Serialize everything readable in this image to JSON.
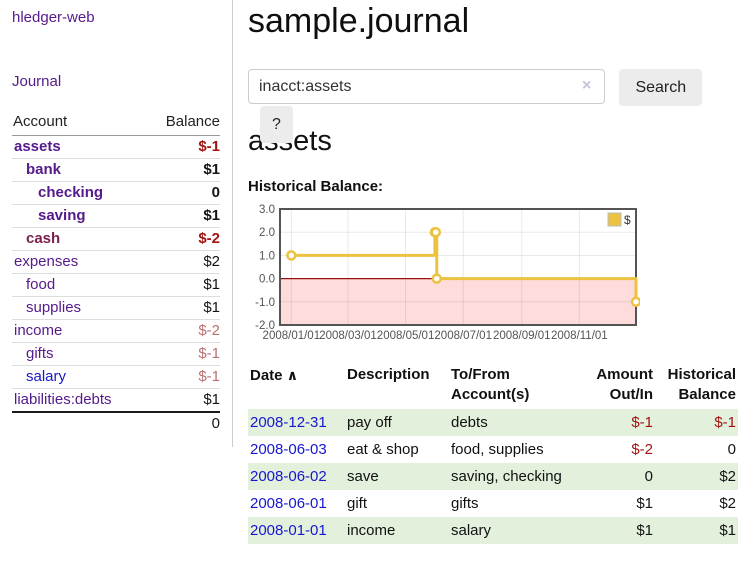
{
  "app": {
    "title": "hledger-web",
    "nav_journal": "Journal"
  },
  "colors": {
    "link_purple": "#551A8B",
    "link_blue": "#1717CF",
    "account_maroon": "#7A1E4E",
    "negative_red": "#A31212",
    "muted_rose": "#B97070",
    "positive_black": "#141414",
    "row_green": "#E3F0DC",
    "chart_gold": "#EDC240",
    "chart_negative_fill": "#FFDCDC",
    "chart_zero_line": "#941111",
    "button_bg": "#ECECEC",
    "clear_icon": "#C8C0DC"
  },
  "sidebar": {
    "header": {
      "account": "Account",
      "balance": "Balance"
    },
    "accounts": [
      {
        "label": "assets",
        "depth": 1,
        "bold": true,
        "color": "purple",
        "balance": "$-1",
        "balance_style": "neg",
        "balance_bold": true
      },
      {
        "label": "bank",
        "depth": 2,
        "bold": true,
        "color": "purple",
        "balance": "$1",
        "balance_style": "pos",
        "balance_bold": true
      },
      {
        "label": "checking",
        "depth": 3,
        "bold": true,
        "color": "purple",
        "balance": "0",
        "balance_style": "pos",
        "balance_bold": true
      },
      {
        "label": "saving",
        "depth": 3,
        "bold": true,
        "color": "purple",
        "balance": "$1",
        "balance_style": "pos",
        "balance_bold": true
      },
      {
        "label": "cash",
        "depth": 2,
        "bold": true,
        "color": "maroon",
        "balance": "$-2",
        "balance_style": "neg",
        "balance_bold": true
      },
      {
        "label": "expenses",
        "depth": 1,
        "bold": false,
        "color": "purple",
        "balance": "$2",
        "balance_style": "pos",
        "balance_bold": false
      },
      {
        "label": "food",
        "depth": 2,
        "bold": false,
        "color": "purple",
        "balance": "$1",
        "balance_style": "pos",
        "balance_bold": false
      },
      {
        "label": "supplies",
        "depth": 2,
        "bold": false,
        "color": "purple",
        "balance": "$1",
        "balance_style": "pos",
        "balance_bold": false
      },
      {
        "label": "income",
        "depth": 1,
        "bold": false,
        "color": "purple",
        "balance": "$-2",
        "balance_style": "rose",
        "balance_bold": false
      },
      {
        "label": "gifts",
        "depth": 2,
        "bold": false,
        "color": "purple",
        "balance": "$-1",
        "balance_style": "rose",
        "balance_bold": false
      },
      {
        "label": "salary",
        "depth": 2,
        "bold": false,
        "color": "blue",
        "balance": "$-1",
        "balance_style": "rose",
        "balance_bold": false
      },
      {
        "label": "liabilities:debts",
        "depth": 1,
        "bold": false,
        "color": "purple",
        "balance": "$1",
        "balance_style": "pos",
        "balance_bold": false
      }
    ],
    "total": "0"
  },
  "main": {
    "title": "sample.journal",
    "search": {
      "value": "inacct:assets",
      "clear_icon": "×",
      "button_label": "Search",
      "help_label": "?"
    },
    "account_heading": "assets",
    "chart_label": "Historical Balance:"
  },
  "chart_data": {
    "type": "line",
    "title": "Historical Balance",
    "step": true,
    "series": [
      {
        "name": "$",
        "color": "#EDC240",
        "points": [
          [
            "2008-01-01",
            1
          ],
          [
            "2008-06-01",
            2
          ],
          [
            "2008-06-02",
            2
          ],
          [
            "2008-06-03",
            0
          ],
          [
            "2008-12-31",
            -1
          ]
        ]
      }
    ],
    "ylim": [
      -2,
      3
    ],
    "yticks": [
      3.0,
      2.0,
      1.0,
      0.0,
      -1.0,
      -2.0
    ],
    "xticks": [
      "2008/01/01",
      "2008/03/01",
      "2008/05/01",
      "2008/07/01",
      "2008/09/01",
      "2008/11/01"
    ],
    "grid": true,
    "legend_position": "top-right",
    "negative_region": {
      "from": 0,
      "to": -2,
      "fill": "#FFDCDC",
      "zero_line": "#941111"
    }
  },
  "register": {
    "columns": {
      "date": "Date",
      "description": "Description",
      "accounts": "To/From Account(s)",
      "amount": "Amount Out/In",
      "balance": "Historical Balance"
    },
    "sort_icon": "∧",
    "rows": [
      {
        "date": "2008-12-31",
        "description": "pay off",
        "accounts": "debts",
        "amount": "$-1",
        "amount_style": "neg",
        "balance": "$-1",
        "balance_style": "neg",
        "green": true
      },
      {
        "date": "2008-06-03",
        "description": "eat & shop",
        "accounts": "food, supplies",
        "amount": "$-2",
        "amount_style": "neg",
        "balance": "0",
        "balance_style": "pos",
        "green": false
      },
      {
        "date": "2008-06-02",
        "description": "save",
        "accounts": "saving, checking",
        "amount": "0",
        "amount_style": "pos",
        "balance": "$2",
        "balance_style": "pos",
        "green": true
      },
      {
        "date": "2008-06-01",
        "description": "gift",
        "accounts": "gifts",
        "amount": "$1",
        "amount_style": "pos",
        "balance": "$2",
        "balance_style": "pos",
        "green": false
      },
      {
        "date": "2008-01-01",
        "description": "income",
        "accounts": "salary",
        "amount": "$1",
        "amount_style": "pos",
        "balance": "$1",
        "balance_style": "pos",
        "green": true
      }
    ]
  }
}
